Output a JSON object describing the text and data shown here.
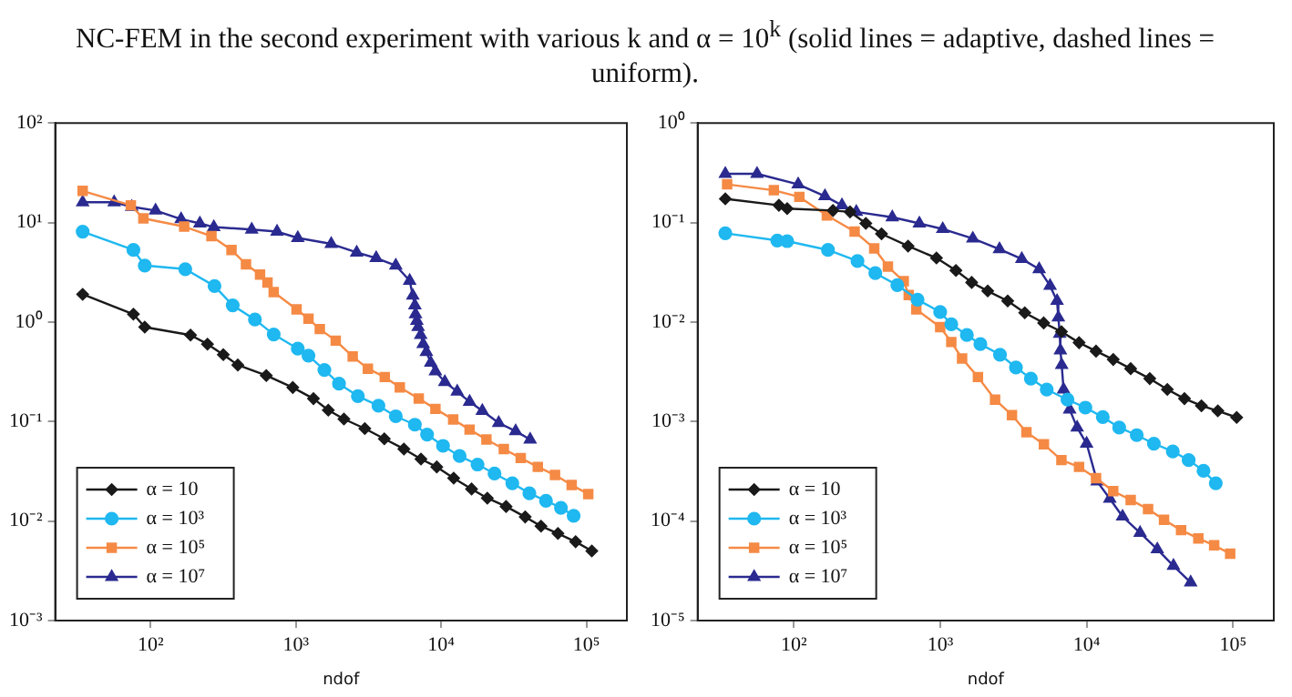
{
  "chart_data": [
    {
      "type": "line",
      "xlabel": "ndof",
      "log": "xy",
      "grid": false,
      "legend": "bottom left",
      "line_style": "solid",
      "annotations": [
        "NC-FEM in the second experiment with various k and α = 10$^{k}$ (solid lines = adaptive, dashed lines = uniform)."
      ],
      "xlim": [
        22,
        190000
      ],
      "xticks": [
        {
          "value": 100,
          "label": "10²"
        },
        {
          "value": 1000,
          "label": "10³"
        },
        {
          "value": 10000,
          "label": "10⁴"
        },
        {
          "value": 100000,
          "label": "10⁵"
        }
      ],
      "ylim": [
        0.001,
        100
      ],
      "yticks": [
        {
          "value": 0.001,
          "label": "10⁻³"
        },
        {
          "value": 0.01,
          "label": "10⁻²"
        },
        {
          "value": 0.1,
          "label": "10⁻¹"
        },
        {
          "value": 1,
          "label": "10⁰"
        },
        {
          "value": 10,
          "label": "10¹"
        },
        {
          "value": 100,
          "label": "10²"
        }
      ],
      "series": [
        {
          "name": "α = 10",
          "color": "#1a1a1a",
          "marker": "diamond",
          "x": [
            34,
            76,
            91,
            188,
            246,
            316,
            398,
            625,
            951,
            1320,
            1670,
            2140,
            2980,
            4060,
            5540,
            7260,
            9330,
            12200,
            16200,
            20800,
            28000,
            37900,
            48700,
            63700,
            84300,
            109000
          ],
          "values": [
            1.9,
            1.2,
            0.89,
            0.74,
            0.6,
            0.47,
            0.37,
            0.29,
            0.22,
            0.17,
            0.13,
            0.106,
            0.085,
            0.067,
            0.053,
            0.042,
            0.035,
            0.027,
            0.021,
            0.017,
            0.014,
            0.011,
            0.0089,
            0.0075,
            0.0062,
            0.005
          ]
        },
        {
          "name": "α = 10³",
          "color": "#1fb8f0",
          "marker": "circle",
          "x": [
            34,
            76,
            91,
            173,
            275,
            367,
            522,
            703,
            1030,
            1220,
            1570,
            1980,
            2670,
            3700,
            4870,
            6590,
            8000,
            10300,
            13400,
            17800,
            23300,
            30900,
            40500,
            52700,
            66800,
            81700
          ],
          "values": [
            8.1,
            5.3,
            3.7,
            3.4,
            2.3,
            1.47,
            1.06,
            0.75,
            0.54,
            0.46,
            0.33,
            0.24,
            0.18,
            0.144,
            0.113,
            0.093,
            0.074,
            0.057,
            0.045,
            0.037,
            0.03,
            0.024,
            0.019,
            0.016,
            0.0136,
            0.0113
          ]
        },
        {
          "name": "α = 10⁵",
          "color": "#f58a45",
          "marker": "square",
          "x": [
            34,
            73,
            89,
            170,
            262,
            360,
            453,
            566,
            637,
            703,
            1010,
            1220,
            1460,
            1880,
            2460,
            3130,
            4090,
            5190,
            7010,
            9130,
            12100,
            15700,
            20500,
            27000,
            35300,
            46300,
            60800,
            79200,
            103000
          ],
          "values": [
            20.8,
            14.9,
            11,
            9.1,
            7.3,
            5.3,
            3.8,
            3,
            2.5,
            2,
            1.34,
            1.08,
            0.85,
            0.65,
            0.45,
            0.34,
            0.28,
            0.22,
            0.17,
            0.134,
            0.105,
            0.083,
            0.066,
            0.053,
            0.043,
            0.035,
            0.029,
            0.023,
            0.0187
          ]
        },
        {
          "name": "α = 10⁷",
          "color": "#2a2a90",
          "marker": "triangle",
          "x": [
            34,
            56,
            74,
            108,
            162,
            218,
            272,
            496,
            741,
            1030,
            1750,
            2620,
            3570,
            4870,
            6070,
            6380,
            6590,
            6660,
            6800,
            6940,
            7230,
            7520,
            7910,
            8480,
            9130,
            10600,
            12900,
            15700,
            19200,
            24900,
            32600,
            41000
          ],
          "values": [
            16,
            16,
            14.4,
            13.2,
            10.8,
            9.8,
            9,
            8.5,
            8.1,
            7,
            6.1,
            5,
            4.4,
            3.7,
            2.6,
            1.84,
            1.47,
            1.2,
            1.03,
            0.89,
            0.74,
            0.6,
            0.5,
            0.39,
            0.32,
            0.25,
            0.2,
            0.158,
            0.128,
            0.097,
            0.08,
            0.066
          ]
        }
      ]
    },
    {
      "type": "line",
      "xlabel": "ndof",
      "log": "xy",
      "grid": false,
      "legend": "bottom left",
      "line_style": "solid",
      "xlim": [
        22,
        190000
      ],
      "xticks": [
        {
          "value": 100,
          "label": "10²"
        },
        {
          "value": 1000,
          "label": "10³"
        },
        {
          "value": 10000,
          "label": "10⁴"
        },
        {
          "value": 100000,
          "label": "10⁵"
        }
      ],
      "ylim": [
        1e-05,
        1
      ],
      "yticks": [
        {
          "value": 1e-05,
          "label": "10⁻⁵"
        },
        {
          "value": 0.0001,
          "label": "10⁻⁴"
        },
        {
          "value": 0.001,
          "label": "10⁻³"
        },
        {
          "value": 0.01,
          "label": "10⁻²"
        },
        {
          "value": 0.1,
          "label": "10⁻¹"
        },
        {
          "value": 1,
          "label": "10⁰"
        }
      ],
      "series": [
        {
          "name": "α = 10",
          "color": "#1a1a1a",
          "marker": "diamond",
          "x": [
            34,
            79,
            90,
            185,
            242,
            310,
            397,
            603,
            942,
            1280,
            1640,
            2110,
            2890,
            3780,
            5090,
            6730,
            8880,
            11600,
            15200,
            20000,
            27000,
            35600,
            46600,
            60900,
            78800,
            106000
          ],
          "values": [
            0.173,
            0.149,
            0.138,
            0.132,
            0.128,
            0.098,
            0.077,
            0.058,
            0.044,
            0.033,
            0.025,
            0.0205,
            0.0163,
            0.0124,
            0.0098,
            0.008,
            0.0062,
            0.0051,
            0.0042,
            0.0034,
            0.0027,
            0.0021,
            0.0017,
            0.00144,
            0.00128,
            0.0011
          ]
        },
        {
          "name": "α = 10³",
          "color": "#1fb8f0",
          "marker": "circle",
          "x": [
            34,
            77,
            90,
            171,
            272,
            360,
            509,
            700,
            999,
            1190,
            1520,
            1880,
            2560,
            3290,
            4160,
            5340,
            7400,
            9810,
            12900,
            16700,
            22000,
            28800,
            38800,
            49800,
            62900,
            76300
          ],
          "values": [
            0.078,
            0.066,
            0.065,
            0.053,
            0.041,
            0.031,
            0.0235,
            0.0168,
            0.0126,
            0.0095,
            0.0074,
            0.006,
            0.0047,
            0.0035,
            0.0027,
            0.0021,
            0.00166,
            0.00138,
            0.00111,
            0.00087,
            0.00073,
            0.0006,
            0.0005,
            0.00041,
            0.00032,
            0.00024
          ]
        },
        {
          "name": "α = 10⁵",
          "color": "#f58a45",
          "marker": "square",
          "x": [
            35,
            73,
            109,
            168,
            260,
            354,
            439,
            563,
            609,
            686,
            999,
            1190,
            1410,
            1810,
            2370,
            3090,
            3880,
            5110,
            6730,
            8880,
            11600,
            15200,
            20000,
            26300,
            33800,
            44200,
            58000,
            74400,
            95700
          ],
          "values": [
            0.242,
            0.211,
            0.181,
            0.118,
            0.081,
            0.055,
            0.036,
            0.0257,
            0.0187,
            0.0134,
            0.0089,
            0.0063,
            0.0043,
            0.0028,
            0.00166,
            0.00116,
            0.00078,
            0.00059,
            0.00041,
            0.00035,
            0.00027,
            0.0002,
            0.000163,
            0.000132,
            0.000103,
            8.1e-05,
            6.7e-05,
            5.7e-05,
            4.7e-05
          ]
        },
        {
          "name": "α = 10⁷",
          "color": "#2a2a90",
          "marker": "triangle",
          "x": [
            34,
            56,
            107,
            163,
            213,
            267,
            470,
            720,
            1040,
            1670,
            2540,
            3610,
            4740,
            5630,
            6280,
            6410,
            6550,
            6620,
            6760,
            6960,
            7660,
            8620,
            10000,
            11800,
            14400,
            17600,
            23200,
            30400,
            39200,
            51400
          ],
          "values": [
            0.309,
            0.309,
            0.242,
            0.184,
            0.149,
            0.128,
            0.113,
            0.098,
            0.086,
            0.069,
            0.054,
            0.043,
            0.034,
            0.0231,
            0.0163,
            0.0111,
            0.0076,
            0.0052,
            0.0037,
            0.0021,
            0.00132,
            0.00087,
            0.0006,
            0.00025,
            0.000168,
            0.000111,
            7.6e-05,
            5.2e-05,
            3.55e-05,
            2.42e-05
          ]
        }
      ]
    }
  ]
}
